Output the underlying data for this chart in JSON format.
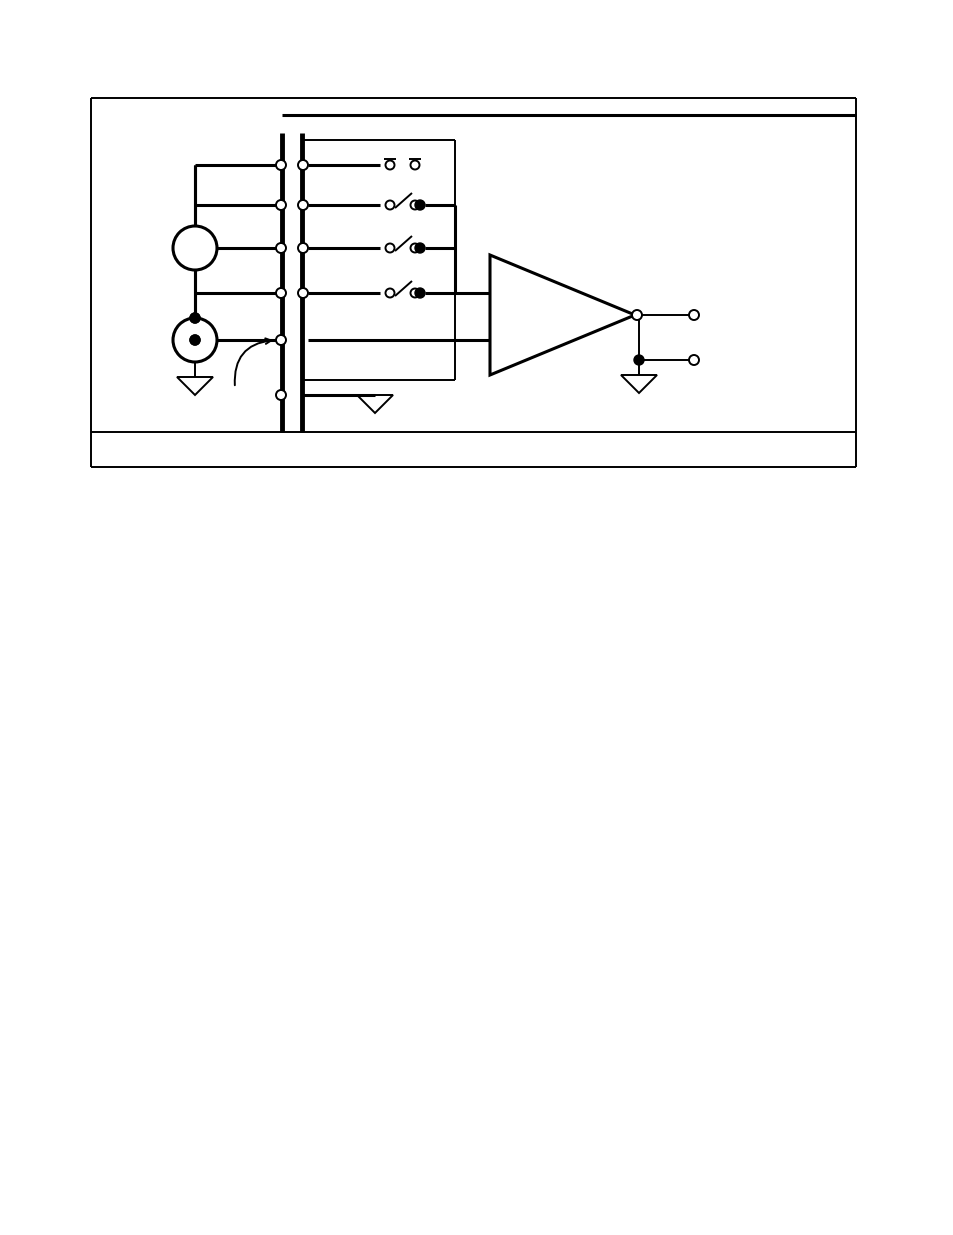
{
  "bg_color": "#ffffff",
  "line_color": "#000000",
  "fig_width": 9.54,
  "fig_height": 12.35,
  "dpi": 100
}
